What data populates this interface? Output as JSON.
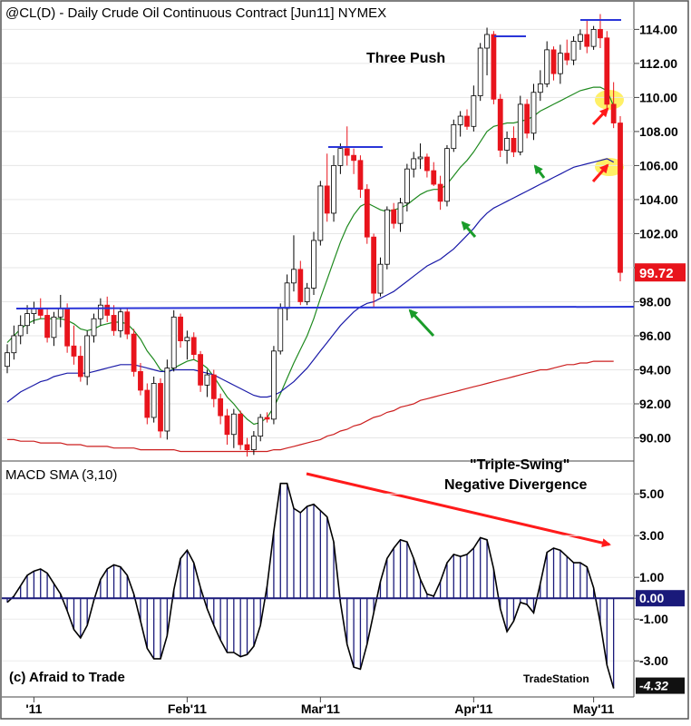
{
  "header": {
    "title": "@CL(D) - Daily  Crude Oil Continuous Contract [Jun11]  NYMEX"
  },
  "annotations": {
    "three_push": "Three Push",
    "triple_swing": "\"Triple-Swing\"",
    "negative_divergence": "Negative Divergence",
    "copyright": "(c) Afraid to Trade",
    "brand": "TradeStation"
  },
  "macd_panel": {
    "label": "MACD SMA (3,10)"
  },
  "x_axis": {
    "labels": [
      "'11",
      "Feb'11",
      "Mar'11",
      "Apr'11",
      "May'11"
    ]
  },
  "colors": {
    "up_candle": "#ffffff",
    "down_candle": "#e8141c",
    "ma_short": "#1f8a1f",
    "ma_mid": "#1a1aa8",
    "ma_long": "#cc1f1f",
    "horizontal_line": "#2a35d8",
    "divergence_arrow": "#ff1a1a",
    "highlight": "#ffee55"
  },
  "chart_data": [
    {
      "type": "candlestick",
      "title": "@CL(D) - Daily  Crude Oil Continuous Contract [Jun11]  NYMEX",
      "ylim": [
        88.8,
        115.3
      ],
      "y_ticks": [
        "114.00",
        "112.00",
        "110.00",
        "108.00",
        "106.00",
        "104.00",
        "102.00",
        "100.00",
        "98.00",
        "96.00",
        "94.00",
        "92.00",
        "90.00"
      ],
      "last_price": "99.72",
      "support_level": 98.0,
      "candles": [
        [
          94.2,
          95.5,
          93.8,
          95.0
        ],
        [
          95.0,
          96.6,
          94.6,
          96.0
        ],
        [
          96.0,
          97.2,
          95.5,
          96.6
        ],
        [
          96.6,
          97.8,
          96.1,
          97.3
        ],
        [
          97.3,
          98.0,
          96.7,
          97.6
        ],
        [
          97.6,
          98.2,
          97.0,
          97.2
        ],
        [
          97.2,
          97.6,
          95.6,
          95.9
        ],
        [
          95.9,
          97.4,
          95.4,
          97.1
        ],
        [
          97.1,
          98.4,
          96.5,
          97.6
        ],
        [
          97.6,
          97.9,
          95.0,
          95.4
        ],
        [
          95.4,
          96.6,
          94.3,
          94.8
        ],
        [
          94.8,
          95.4,
          93.3,
          93.6
        ],
        [
          93.6,
          96.3,
          93.1,
          96.0
        ],
        [
          96.0,
          97.3,
          95.6,
          97.0
        ],
        [
          97.0,
          98.2,
          96.6,
          97.8
        ],
        [
          97.8,
          98.3,
          96.8,
          97.2
        ],
        [
          97.2,
          97.8,
          96.0,
          96.3
        ],
        [
          96.3,
          97.6,
          95.9,
          97.4
        ],
        [
          97.4,
          97.6,
          95.8,
          96.1
        ],
        [
          96.1,
          96.4,
          93.6,
          93.9
        ],
        [
          93.9,
          94.4,
          92.5,
          92.8
        ],
        [
          92.8,
          93.2,
          90.8,
          91.2
        ],
        [
          91.2,
          93.6,
          90.9,
          93.2
        ],
        [
          93.2,
          93.5,
          90.0,
          90.4
        ],
        [
          90.4,
          94.6,
          89.9,
          94.1
        ],
        [
          94.1,
          97.5,
          93.9,
          97.1
        ],
        [
          97.1,
          97.3,
          95.3,
          95.7
        ],
        [
          95.7,
          96.3,
          94.6,
          95.9
        ],
        [
          95.9,
          96.2,
          94.6,
          94.9
        ],
        [
          94.9,
          95.1,
          92.7,
          93.1
        ],
        [
          93.1,
          94.0,
          92.4,
          93.7
        ],
        [
          93.7,
          94.0,
          91.8,
          92.3
        ],
        [
          92.3,
          92.6,
          90.8,
          91.3
        ],
        [
          91.3,
          91.7,
          89.6,
          90.2
        ],
        [
          90.2,
          91.7,
          89.4,
          91.4
        ],
        [
          91.4,
          91.6,
          89.3,
          89.6
        ],
        [
          89.6,
          90.0,
          88.9,
          89.3
        ],
        [
          89.3,
          90.4,
          89.0,
          90.1
        ],
        [
          90.1,
          91.4,
          89.8,
          91.2
        ],
        [
          91.2,
          91.5,
          90.9,
          91.1
        ],
        [
          91.1,
          95.4,
          90.8,
          95.1
        ],
        [
          95.1,
          97.9,
          94.9,
          97.6
        ],
        [
          97.6,
          99.6,
          96.9,
          99.1
        ],
        [
          99.1,
          101.9,
          98.6,
          99.9
        ],
        [
          99.9,
          100.4,
          97.8,
          98.0
        ],
        [
          98.0,
          99.1,
          97.8,
          98.8
        ],
        [
          98.8,
          102.1,
          98.4,
          101.6
        ],
        [
          101.6,
          105.1,
          101.3,
          104.8
        ],
        [
          104.8,
          106.7,
          102.7,
          103.2
        ],
        [
          103.2,
          106.6,
          102.7,
          106.0
        ],
        [
          106.0,
          107.3,
          105.5,
          107.0
        ],
        [
          107.0,
          108.3,
          106.0,
          106.6
        ],
        [
          106.6,
          107.0,
          105.5,
          106.3
        ],
        [
          106.3,
          106.6,
          104.1,
          104.6
        ],
        [
          104.6,
          104.9,
          101.4,
          101.8
        ],
        [
          101.8,
          102.0,
          97.7,
          98.5
        ],
        [
          98.5,
          100.6,
          98.3,
          100.2
        ],
        [
          100.2,
          103.6,
          99.9,
          103.4
        ],
        [
          103.4,
          103.8,
          102.3,
          102.6
        ],
        [
          102.6,
          104.1,
          102.1,
          103.8
        ],
        [
          103.8,
          106.1,
          103.3,
          105.8
        ],
        [
          105.8,
          106.8,
          105.3,
          106.4
        ],
        [
          106.4,
          107.3,
          105.8,
          106.5
        ],
        [
          106.5,
          106.7,
          105.3,
          105.7
        ],
        [
          105.7,
          106.2,
          104.8,
          104.9
        ],
        [
          104.9,
          105.4,
          103.4,
          103.9
        ],
        [
          103.9,
          107.2,
          103.6,
          107.0
        ],
        [
          107.0,
          108.7,
          106.8,
          108.4
        ],
        [
          108.4,
          109.2,
          107.7,
          108.9
        ],
        [
          108.9,
          109.3,
          108.1,
          108.3
        ],
        [
          108.3,
          110.7,
          108.0,
          110.1
        ],
        [
          110.1,
          113.2,
          109.8,
          112.9
        ],
        [
          112.9,
          114.1,
          111.3,
          113.7
        ],
        [
          113.7,
          113.9,
          109.6,
          109.9
        ],
        [
          109.9,
          110.2,
          106.5,
          106.9
        ],
        [
          106.9,
          108.0,
          106.1,
          107.6
        ],
        [
          107.6,
          108.3,
          106.5,
          106.8
        ],
        [
          106.8,
          110.1,
          106.6,
          109.6
        ],
        [
          109.6,
          109.9,
          107.6,
          107.9
        ],
        [
          107.9,
          110.8,
          107.5,
          110.3
        ],
        [
          110.3,
          111.6,
          109.8,
          110.8
        ],
        [
          110.8,
          113.3,
          110.6,
          112.8
        ],
        [
          112.8,
          113.0,
          111.0,
          111.4
        ],
        [
          111.4,
          113.1,
          110.8,
          112.6
        ],
        [
          112.6,
          113.4,
          111.9,
          112.2
        ],
        [
          112.2,
          113.6,
          111.9,
          113.3
        ],
        [
          113.3,
          114.0,
          112.8,
          113.7
        ],
        [
          113.7,
          114.5,
          112.6,
          113.0
        ],
        [
          113.0,
          114.2,
          112.8,
          114.0
        ],
        [
          114.0,
          114.9,
          112.9,
          113.5
        ],
        [
          113.5,
          113.9,
          109.3,
          109.6
        ],
        [
          109.6,
          110.9,
          108.2,
          108.5
        ],
        [
          108.5,
          108.9,
          99.2,
          99.72
        ]
      ],
      "series": [
        {
          "name": "",
          "values": [
            95.6,
            96.0,
            96.4,
            96.7,
            96.9,
            97.0,
            97.0,
            97.0,
            97.0,
            96.9,
            96.7,
            96.4,
            96.3,
            96.4,
            96.6,
            96.7,
            96.8,
            96.8,
            96.7,
            96.3,
            95.8,
            95.1,
            94.6,
            94.0,
            93.8,
            94.1,
            94.3,
            94.5,
            94.6,
            94.4,
            94.1,
            93.6,
            93.0,
            92.4,
            92.0,
            91.5,
            91.1,
            90.8,
            90.9,
            91.2,
            91.8,
            92.6,
            93.5,
            94.4,
            95.2,
            96.0,
            97.0,
            98.2,
            99.3,
            100.4,
            101.5,
            102.4,
            103.1,
            103.6,
            103.8,
            103.6,
            103.4,
            103.3,
            103.4,
            103.5,
            103.7,
            104.0,
            104.3,
            104.5,
            104.6,
            104.6,
            104.9,
            105.4,
            105.9,
            106.3,
            106.8,
            107.4,
            108.0,
            108.3,
            108.4,
            108.5,
            108.5,
            108.6,
            108.7,
            108.9,
            109.2,
            109.4,
            109.6,
            109.8,
            110.0,
            110.2,
            110.4,
            110.5,
            110.6,
            110.6,
            110.4,
            109.5
          ]
        },
        {
          "name": "",
          "values": [
            92.1,
            92.4,
            92.7,
            92.9,
            93.1,
            93.3,
            93.4,
            93.6,
            93.7,
            93.8,
            93.8,
            93.8,
            93.8,
            93.9,
            94.0,
            94.1,
            94.2,
            94.3,
            94.3,
            94.3,
            94.2,
            94.1,
            94.0,
            93.9,
            93.9,
            94.0,
            94.0,
            94.0,
            94.0,
            93.9,
            93.8,
            93.7,
            93.5,
            93.3,
            93.1,
            92.9,
            92.7,
            92.5,
            92.4,
            92.4,
            92.5,
            92.7,
            93.0,
            93.3,
            93.7,
            94.1,
            94.6,
            95.1,
            95.6,
            96.1,
            96.6,
            97.0,
            97.4,
            97.7,
            97.9,
            98.0,
            98.2,
            98.4,
            98.6,
            98.9,
            99.2,
            99.5,
            99.8,
            100.1,
            100.3,
            100.5,
            100.8,
            101.1,
            101.5,
            101.9,
            102.3,
            102.8,
            103.2,
            103.5,
            103.7,
            103.9,
            104.1,
            104.3,
            104.5,
            104.7,
            104.9,
            105.1,
            105.3,
            105.5,
            105.7,
            105.9,
            106.0,
            106.1,
            106.2,
            106.3,
            106.4,
            106.2
          ]
        },
        {
          "name": "",
          "values": [
            89.9,
            89.9,
            89.8,
            89.8,
            89.8,
            89.7,
            89.7,
            89.7,
            89.7,
            89.6,
            89.6,
            89.6,
            89.5,
            89.5,
            89.5,
            89.5,
            89.4,
            89.4,
            89.4,
            89.4,
            89.3,
            89.3,
            89.3,
            89.3,
            89.3,
            89.3,
            89.2,
            89.2,
            89.2,
            89.2,
            89.2,
            89.2,
            89.2,
            89.2,
            89.2,
            89.2,
            89.2,
            89.2,
            89.2,
            89.2,
            89.3,
            89.3,
            89.4,
            89.5,
            89.6,
            89.7,
            89.8,
            89.9,
            90.1,
            90.2,
            90.4,
            90.5,
            90.7,
            90.8,
            91.0,
            91.2,
            91.3,
            91.5,
            91.6,
            91.8,
            91.9,
            92.0,
            92.2,
            92.3,
            92.4,
            92.5,
            92.6,
            92.7,
            92.8,
            92.9,
            93.0,
            93.1,
            93.2,
            93.3,
            93.4,
            93.5,
            93.6,
            93.7,
            93.8,
            93.9,
            94.0,
            94.0,
            94.1,
            94.2,
            94.3,
            94.3,
            94.4,
            94.4,
            94.5,
            94.5,
            94.5,
            94.5
          ]
        }
      ]
    },
    {
      "type": "bar",
      "title": "MACD SMA (3,10)",
      "ylim": [
        -4.6,
        6.4
      ],
      "y_ticks": [
        "5.00",
        "3.00",
        "1.00",
        "0.00",
        "-1.00",
        "-3.00"
      ],
      "last_value": "-4.32",
      "values": [
        -0.2,
        0.1,
        0.6,
        1.1,
        1.3,
        1.4,
        1.2,
        0.7,
        0.2,
        -0.6,
        -1.5,
        -1.9,
        -1.3,
        -0.1,
        0.9,
        1.4,
        1.6,
        1.5,
        1.1,
        0.2,
        -1.1,
        -2.4,
        -2.9,
        -2.9,
        -1.8,
        0.4,
        1.9,
        2.3,
        1.7,
        0.5,
        -0.5,
        -1.3,
        -2.0,
        -2.6,
        -2.6,
        -2.8,
        -2.7,
        -2.3,
        -1.3,
        0.6,
        3.2,
        5.5,
        5.5,
        4.3,
        4.1,
        4.4,
        4.5,
        4.2,
        3.9,
        2.7,
        -0.2,
        -2.2,
        -3.3,
        -3.4,
        -2.2,
        -0.7,
        0.8,
        1.9,
        2.4,
        2.8,
        2.7,
        1.9,
        0.9,
        0.2,
        0.1,
        0.8,
        1.7,
        2.1,
        2.0,
        2.1,
        2.4,
        2.9,
        2.8,
        1.4,
        -0.5,
        -1.6,
        -1.1,
        -0.2,
        -0.3,
        -0.7,
        0.7,
        2.2,
        2.4,
        2.3,
        2.0,
        1.7,
        1.7,
        1.5,
        0.5,
        -1.2,
        -3.2,
        -4.32
      ]
    }
  ]
}
